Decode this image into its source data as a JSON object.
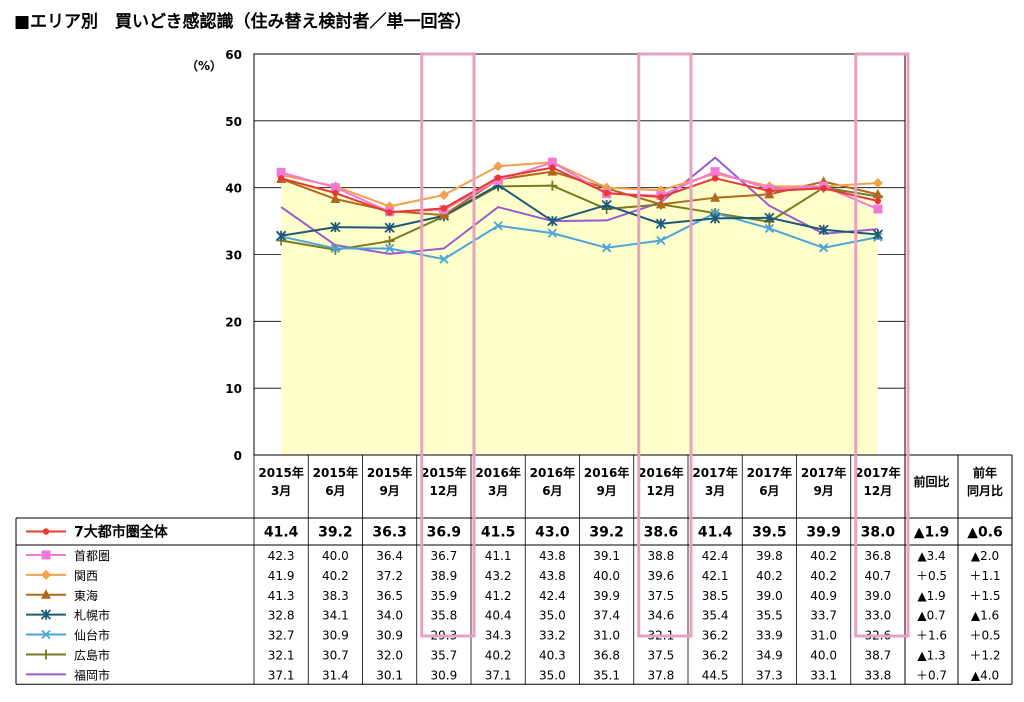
{
  "title": "■エリア別　買いどき感認識（住み替え検討者／単一回答）",
  "chart_data": {
    "type": "line",
    "title": "■エリア別　買いどき感認識（住み替え検討者／単一回答）",
    "unit_label": "（%）",
    "ylim": [
      0,
      60
    ],
    "yticks": [
      0,
      10,
      20,
      30,
      40,
      50,
      60
    ],
    "grid": true,
    "categories": [
      [
        "2015年",
        "3月"
      ],
      [
        "2015年",
        "6月"
      ],
      [
        "2015年",
        "9月"
      ],
      [
        "2015年",
        "12月"
      ],
      [
        "2016年",
        "3月"
      ],
      [
        "2016年",
        "6月"
      ],
      [
        "2016年",
        "9月"
      ],
      [
        "2016年",
        "12月"
      ],
      [
        "2017年",
        "3月"
      ],
      [
        "2017年",
        "6月"
      ],
      [
        "2017年",
        "9月"
      ],
      [
        "2017年",
        "12月"
      ]
    ],
    "highlight_columns": [
      3,
      7,
      11
    ],
    "extra_headers": [
      [
        "前回比"
      ],
      [
        "前年",
        "同月比"
      ]
    ],
    "series": [
      {
        "name": "7大都市圏全体",
        "color": "#e8382f",
        "marker": "dot",
        "values": [
          41.4,
          39.2,
          36.3,
          36.9,
          41.5,
          43.0,
          39.2,
          38.6,
          41.4,
          39.5,
          39.9,
          38.0
        ],
        "change_prev": "▲1.9",
        "change_year": "▲0.6"
      },
      {
        "name": "首都圏",
        "color": "#f27ad7",
        "marker": "square",
        "values": [
          42.3,
          40.0,
          36.4,
          36.7,
          41.1,
          43.8,
          39.1,
          38.8,
          42.4,
          39.8,
          40.2,
          36.8
        ],
        "change_prev": "▲3.4",
        "change_year": "▲2.0"
      },
      {
        "name": "関西",
        "color": "#f5a04a",
        "marker": "diamond",
        "values": [
          41.9,
          40.2,
          37.2,
          38.9,
          43.2,
          43.8,
          40.0,
          39.6,
          42.1,
          40.2,
          40.2,
          40.7
        ],
        "change_prev": "＋0.5",
        "change_year": "＋1.1"
      },
      {
        "name": "東海",
        "color": "#b06a1e",
        "marker": "triangle",
        "values": [
          41.3,
          38.3,
          36.5,
          35.9,
          41.2,
          42.4,
          39.9,
          37.5,
          38.5,
          39.0,
          40.9,
          39.0
        ],
        "change_prev": "▲1.9",
        "change_year": "＋1.5"
      },
      {
        "name": "札幌市",
        "color": "#1e5a78",
        "marker": "asterisk",
        "values": [
          32.8,
          34.1,
          34.0,
          35.8,
          40.4,
          35.0,
          37.4,
          34.6,
          35.4,
          35.5,
          33.7,
          33.0
        ],
        "change_prev": "▲0.7",
        "change_year": "▲1.6"
      },
      {
        "name": "仙台市",
        "color": "#4aa6d8",
        "marker": "x",
        "values": [
          32.7,
          30.9,
          30.9,
          29.3,
          34.3,
          33.2,
          31.0,
          32.1,
          36.2,
          33.9,
          31.0,
          32.6
        ],
        "change_prev": "＋1.6",
        "change_year": "＋0.5"
      },
      {
        "name": "広島市",
        "color": "#7a7a20",
        "marker": "plus",
        "values": [
          32.1,
          30.7,
          32.0,
          35.7,
          40.2,
          40.3,
          36.8,
          37.5,
          36.2,
          34.9,
          40.0,
          38.7
        ],
        "change_prev": "▲1.3",
        "change_year": "＋1.2"
      },
      {
        "name": "福岡市",
        "color": "#9b5bd0",
        "marker": "none",
        "values": [
          37.1,
          31.4,
          30.1,
          30.9,
          37.1,
          35.0,
          35.1,
          37.8,
          44.5,
          37.3,
          33.1,
          33.8
        ],
        "change_prev": "＋0.7",
        "change_year": "▲4.0"
      }
    ]
  }
}
